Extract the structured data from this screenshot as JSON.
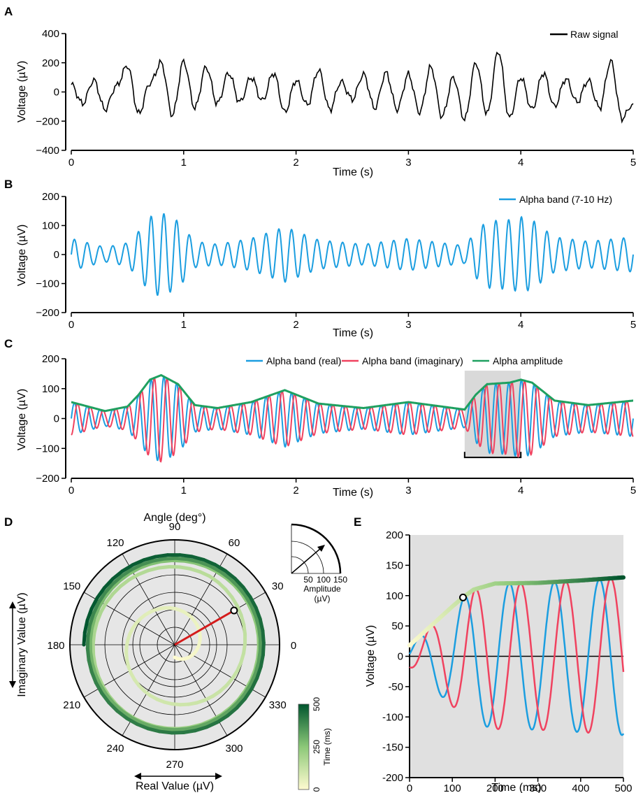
{
  "chart_data": [
    {
      "id": "A",
      "type": "line",
      "xlabel": "Time (s)",
      "ylabel": "Voltage (µV)",
      "xlim": [
        0,
        5
      ],
      "ylim": [
        -400,
        400
      ],
      "xticks": [
        0,
        1,
        2,
        3,
        4,
        5
      ],
      "yticks": [
        -400,
        -200,
        0,
        200,
        400
      ],
      "series": [
        {
          "name": "Raw signal",
          "color": "#000000",
          "x": [
            0,
            0.1,
            0.2,
            0.3,
            0.4,
            0.5,
            0.6,
            0.7,
            0.8,
            0.9,
            1.0,
            1.1,
            1.2,
            1.3,
            1.4,
            1.5,
            1.6,
            1.7,
            1.8,
            1.9,
            2.0,
            2.1,
            2.2,
            2.3,
            2.4,
            2.5,
            2.6,
            2.7,
            2.8,
            2.9,
            3.0,
            3.1,
            3.2,
            3.3,
            3.4,
            3.5,
            3.6,
            3.7,
            3.8,
            3.9,
            4.0,
            4.1,
            4.2,
            4.3,
            4.4,
            4.5,
            4.6,
            4.7,
            4.8,
            4.9,
            5.0
          ],
          "values": [
            50,
            -80,
            80,
            -120,
            40,
            180,
            -150,
            60,
            200,
            -160,
            210,
            -110,
            170,
            -80,
            130,
            -70,
            100,
            -60,
            130,
            -140,
            80,
            -90,
            150,
            -120,
            70,
            -50,
            120,
            -110,
            130,
            -120,
            120,
            -140,
            170,
            -170,
            100,
            -190,
            200,
            -150,
            280,
            -180,
            100,
            -120,
            130,
            -100,
            90,
            -70,
            80,
            -110,
            210,
            -180,
            -80
          ]
        }
      ]
    },
    {
      "id": "B",
      "type": "line",
      "xlabel": "Time (s)",
      "ylabel": "Voltage (µV)",
      "xlim": [
        0,
        5
      ],
      "ylim": [
        -200,
        200
      ],
      "xticks": [
        0,
        1,
        2,
        3,
        4,
        5
      ],
      "yticks": [
        -200,
        -100,
        0,
        100,
        200
      ],
      "series": [
        {
          "name": "Alpha band (7-10 Hz)",
          "color": "#1b9ee0",
          "envelope_t": [
            0,
            0.3,
            0.5,
            0.6,
            0.7,
            0.8,
            0.95,
            1.1,
            1.3,
            1.6,
            1.9,
            2.2,
            2.6,
            3.0,
            3.3,
            3.5,
            3.6,
            3.7,
            3.9,
            4.0,
            4.1,
            4.3,
            4.6,
            5.0
          ],
          "envelope_amp": [
            55,
            25,
            40,
            80,
            130,
            145,
            115,
            45,
            35,
            55,
            95,
            50,
            35,
            55,
            40,
            30,
            80,
            115,
            120,
            130,
            120,
            60,
            45,
            60
          ],
          "freq_hz": 8.8
        }
      ]
    },
    {
      "id": "C",
      "type": "line",
      "xlabel": "Time (s)",
      "ylabel": "Voltage (µV)",
      "xlim": [
        0,
        5
      ],
      "ylim": [
        -200,
        200
      ],
      "xticks": [
        0,
        1,
        2,
        3,
        4,
        5
      ],
      "yticks": [
        -200,
        -100,
        0,
        100,
        200
      ],
      "highlight": {
        "x": [
          3.5,
          4.0
        ]
      },
      "series": [
        {
          "name": "Alpha band (real)",
          "color": "#1b9ee0"
        },
        {
          "name": "Alpha band (imaginary)",
          "color": "#f0425f"
        },
        {
          "name": "Alpha amplitude",
          "color": "#1fa060"
        }
      ]
    },
    {
      "id": "D",
      "type": "polar",
      "angle_label": "Angle (deg°)",
      "angle_ticks": [
        0,
        30,
        60,
        90,
        120,
        150,
        180,
        210,
        240,
        270,
        300,
        330
      ],
      "radial_max": 150,
      "radial_ticks": [
        50,
        100,
        150
      ],
      "inset_label": "Amplitude",
      "inset_unit": "(µV)",
      "xlabel": "Real Value (µV)",
      "ylabel": "Imaginary Value (µV)",
      "marker": {
        "amplitude": 98,
        "angle_deg": 30
      },
      "colorbar": {
        "label": "Time (ms)",
        "ticks": [
          0,
          250,
          500
        ],
        "colors": [
          "#fffbd0",
          "#8cc878",
          "#00552e"
        ]
      }
    },
    {
      "id": "E",
      "type": "line",
      "xlabel": "Time (ms)",
      "ylabel": "Voltage (µV)",
      "xlim": [
        0,
        500
      ],
      "ylim": [
        -200,
        200
      ],
      "xticks": [
        0,
        100,
        200,
        300,
        400,
        500
      ],
      "yticks": [
        -200,
        -150,
        -100,
        -50,
        0,
        50,
        100,
        150,
        200
      ],
      "amplitude_t": [
        0,
        50,
        100,
        125,
        150,
        200,
        300,
        400,
        500
      ],
      "amplitude": [
        18,
        50,
        82,
        97,
        110,
        120,
        121,
        125,
        130
      ],
      "marker": {
        "x": 125,
        "y": 97
      }
    }
  ]
}
